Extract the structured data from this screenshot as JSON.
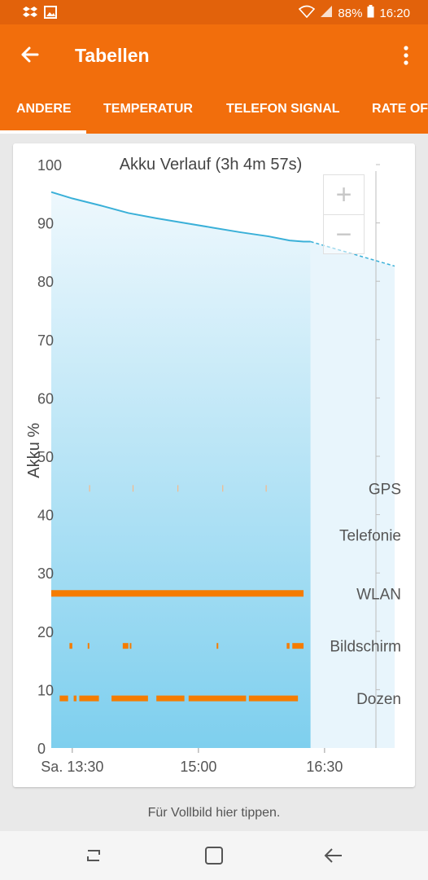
{
  "status": {
    "battery": "88%",
    "time": "16:20"
  },
  "app": {
    "title": "Tabellen"
  },
  "tabs": [
    {
      "label": "ANDERE",
      "active": true
    },
    {
      "label": "TEMPERATUR",
      "active": false
    },
    {
      "label": "TELEFON SIGNAL",
      "active": false
    },
    {
      "label": "RATE OF",
      "active": false
    }
  ],
  "colors": {
    "appbar": "#f26e0c",
    "statusbar": "#e2620b",
    "battery_line": "#3ab0d8",
    "activity": "#f57c00"
  },
  "zoom": {
    "plus": "+",
    "minus": "−"
  },
  "footer": {
    "hint": "Für Vollbild hier tippen."
  },
  "chart_data": {
    "type": "area",
    "title": "Akku Verlauf (3h 4m 57s)",
    "ylabel": "Akku %",
    "xlabel": "",
    "ylim": [
      0,
      100
    ],
    "yticks": [
      0,
      10,
      20,
      30,
      40,
      50,
      60,
      70,
      80,
      90,
      100
    ],
    "xticks": [
      "Sa. 13:30",
      "15:00",
      "16:30"
    ],
    "xtick_minutes": [
      810,
      900,
      990
    ],
    "xlim_minutes": [
      795,
      1040
    ],
    "battery": {
      "x_minutes": [
        795,
        810,
        830,
        850,
        870,
        890,
        910,
        930,
        950,
        965,
        975,
        980
      ],
      "y": [
        95.3,
        94.2,
        93.0,
        91.7,
        90.8,
        90.0,
        89.2,
        88.4,
        87.7,
        87.0,
        86.8,
        86.8
      ]
    },
    "prediction": {
      "x_minutes": [
        980,
        1040
      ],
      "y": [
        86.8,
        82.6
      ]
    },
    "activity_rows": [
      {
        "name": "GPS",
        "level": 44.5,
        "style": "ticks",
        "segments": [
          [
            822,
            823
          ],
          [
            853,
            854
          ],
          [
            885,
            886
          ],
          [
            917,
            918
          ],
          [
            948,
            949
          ]
        ]
      },
      {
        "name": "Telefonie",
        "level": 36.5,
        "style": "none",
        "segments": []
      },
      {
        "name": "WLAN",
        "level": 26.5,
        "style": "bar",
        "segments": [
          [
            795,
            975
          ]
        ]
      },
      {
        "name": "Bildschirm",
        "level": 17.5,
        "style": "dashes",
        "segments": [
          [
            808,
            810
          ],
          [
            821,
            822
          ],
          [
            846,
            850
          ],
          [
            851,
            852
          ],
          [
            913,
            914
          ],
          [
            963,
            965
          ],
          [
            967,
            975
          ]
        ]
      },
      {
        "name": "Dozen",
        "level": 8.5,
        "style": "dashes",
        "segments": [
          [
            801,
            807
          ],
          [
            811,
            813
          ],
          [
            815,
            829
          ],
          [
            838,
            864
          ],
          [
            870,
            890
          ],
          [
            893,
            934
          ],
          [
            936,
            971
          ]
        ]
      }
    ]
  }
}
